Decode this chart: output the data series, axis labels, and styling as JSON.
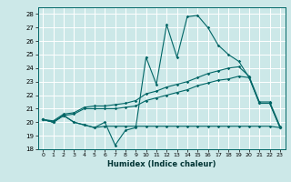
{
  "title": "",
  "xlabel": "Humidex (Indice chaleur)",
  "bg_color": "#cce8e8",
  "grid_color": "#ffffff",
  "line_color": "#006666",
  "xlim": [
    -0.5,
    23.5
  ],
  "ylim": [
    18,
    28.5
  ],
  "yticks": [
    18,
    19,
    20,
    21,
    22,
    23,
    24,
    25,
    26,
    27,
    28
  ],
  "xticks": [
    0,
    1,
    2,
    3,
    4,
    5,
    6,
    7,
    8,
    9,
    10,
    11,
    12,
    13,
    14,
    15,
    16,
    17,
    18,
    19,
    20,
    21,
    22,
    23
  ],
  "line1_x": [
    0,
    1,
    2,
    3,
    4,
    5,
    6,
    7,
    8,
    9,
    10,
    11,
    12,
    13,
    14,
    15,
    16,
    17,
    18,
    19,
    20,
    21,
    22,
    23
  ],
  "line1_y": [
    20.2,
    20.0,
    20.5,
    20.0,
    19.8,
    19.6,
    20.0,
    18.3,
    19.4,
    19.6,
    24.8,
    22.8,
    27.2,
    24.8,
    27.8,
    27.9,
    27.0,
    25.7,
    25.0,
    24.5,
    23.3,
    21.4,
    21.4,
    19.6
  ],
  "line2_x": [
    0,
    1,
    2,
    3,
    4,
    5,
    6,
    7,
    8,
    9,
    10,
    11,
    12,
    13,
    14,
    15,
    16,
    17,
    18,
    19,
    20,
    21,
    22,
    23
  ],
  "line2_y": [
    20.2,
    20.1,
    20.6,
    20.7,
    21.1,
    21.2,
    21.2,
    21.3,
    21.4,
    21.6,
    22.1,
    22.3,
    22.6,
    22.8,
    23.0,
    23.3,
    23.6,
    23.8,
    24.0,
    24.1,
    23.4,
    21.5,
    21.5,
    19.7
  ],
  "line3_x": [
    0,
    1,
    2,
    3,
    4,
    5,
    6,
    7,
    8,
    9,
    10,
    11,
    12,
    13,
    14,
    15,
    16,
    17,
    18,
    19,
    20,
    21,
    22,
    23
  ],
  "line3_y": [
    20.2,
    20.0,
    20.5,
    20.6,
    21.0,
    21.0,
    21.0,
    21.0,
    21.1,
    21.2,
    21.6,
    21.8,
    22.0,
    22.2,
    22.4,
    22.7,
    22.9,
    23.1,
    23.2,
    23.4,
    23.3,
    21.4,
    21.4,
    19.6
  ],
  "line4_x": [
    0,
    1,
    2,
    3,
    4,
    5,
    6,
    7,
    8,
    9,
    10,
    11,
    12,
    13,
    14,
    15,
    16,
    17,
    18,
    19,
    20,
    21,
    22,
    23
  ],
  "line4_y": [
    20.2,
    20.0,
    20.5,
    20.0,
    19.8,
    19.6,
    19.7,
    19.7,
    19.7,
    19.7,
    19.7,
    19.7,
    19.7,
    19.7,
    19.7,
    19.7,
    19.7,
    19.7,
    19.7,
    19.7,
    19.7,
    19.7,
    19.7,
    19.6
  ]
}
